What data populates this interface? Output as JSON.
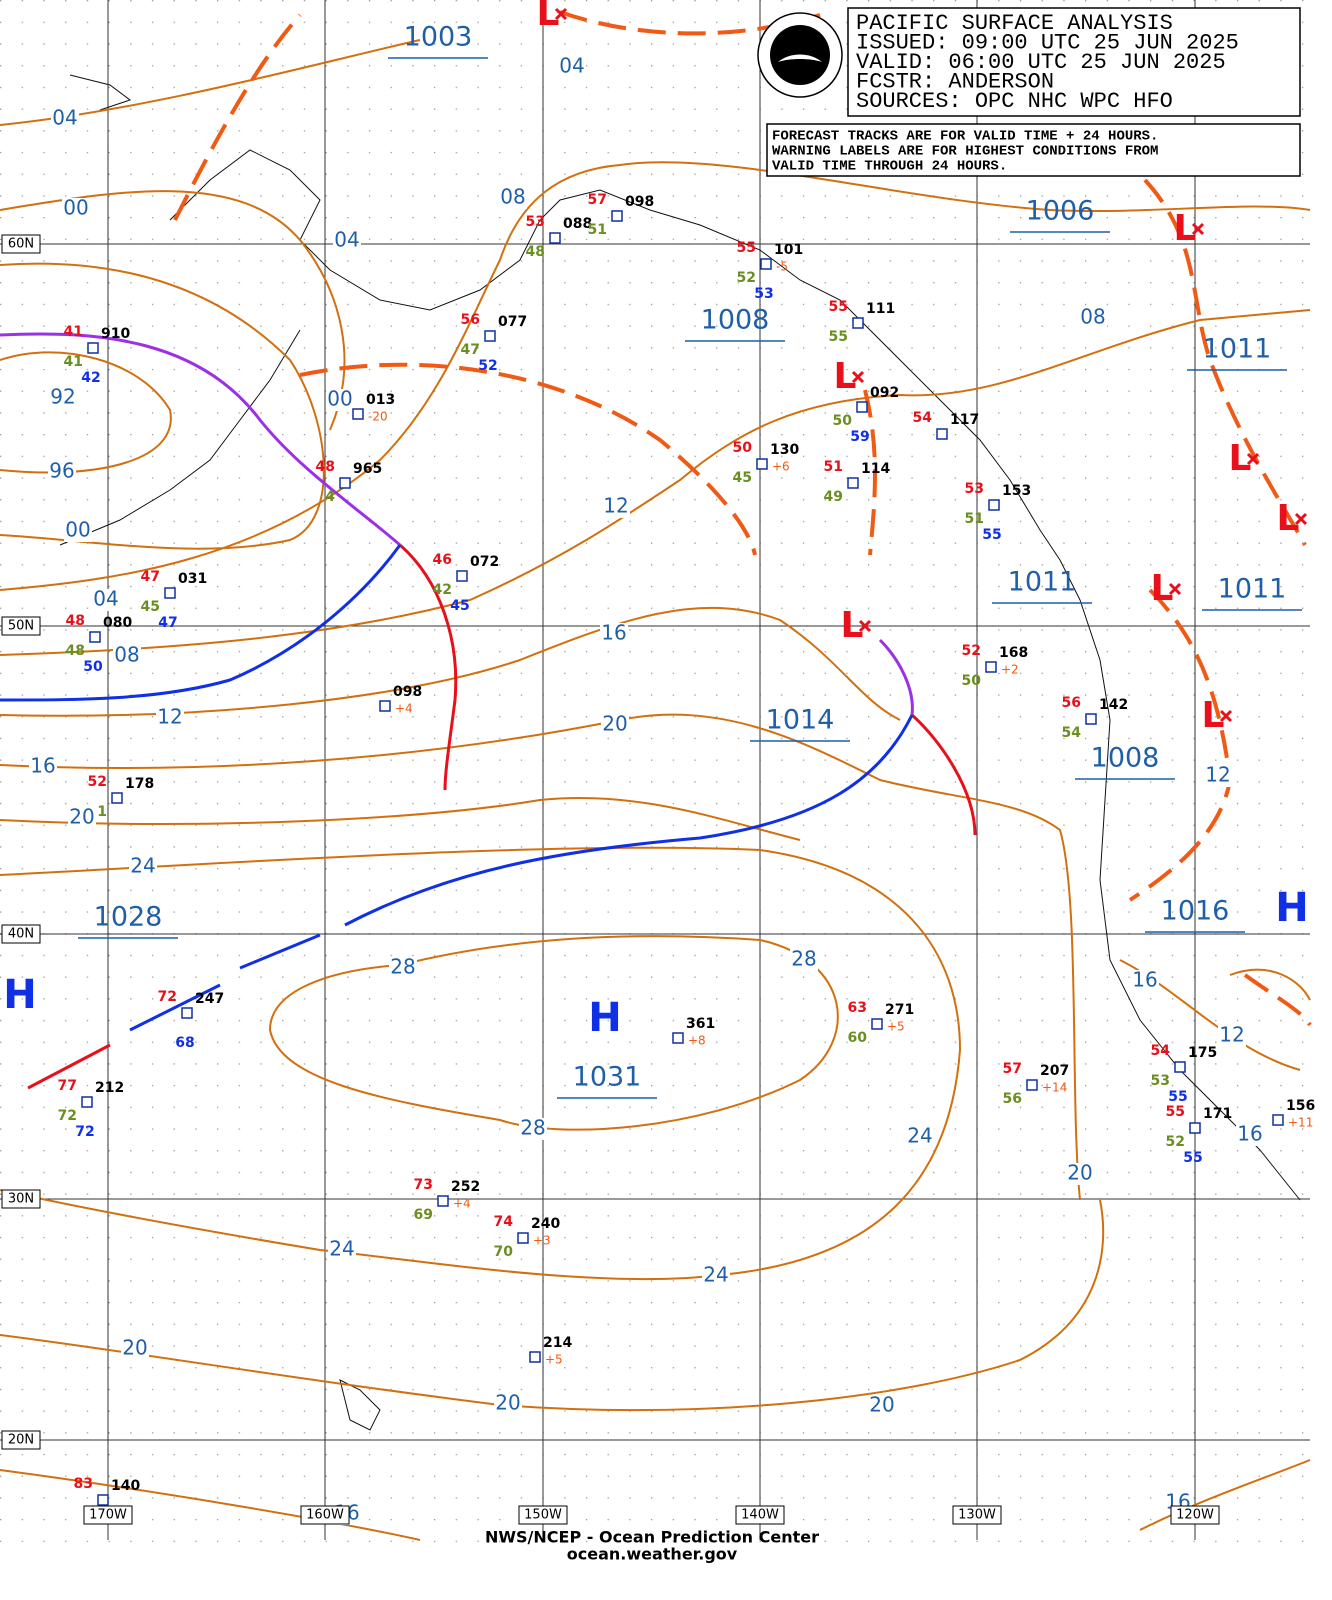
{
  "header": {
    "title": "PACIFIC SURFACE ANALYSIS",
    "issued": "ISSUED: 09:00 UTC 25 JUN 2025",
    "valid": "VALID:  06:00 UTC 25 JUN 2025",
    "forecaster": "FCSTR:  ANDERSON",
    "sources": "SOURCES: OPC NHC WPC HFO"
  },
  "note": [
    "FORECAST TRACKS ARE FOR VALID TIME + 24 HOURS.",
    "WARNING LABELS ARE FOR HIGHEST CONDITIONS FROM",
    "VALID TIME THROUGH 24 HOURS."
  ],
  "high_symbols": [
    "H",
    "H",
    "H"
  ],
  "low_symbols": [
    "L",
    "L",
    "L",
    "L",
    "L",
    "L",
    "L",
    "L"
  ],
  "center_pressures": [
    "1003",
    "1006",
    "1008",
    "1011",
    "1011",
    "1011",
    "1014",
    "1008",
    "1016",
    "1028",
    "1031"
  ],
  "isobar_labels": [
    "04",
    "04",
    "00",
    "04",
    "08",
    "08",
    "92",
    "00",
    "96",
    "00",
    "12",
    "04",
    "08",
    "16",
    "12",
    "20",
    "16",
    "20",
    "24",
    "28",
    "28",
    "12",
    "16",
    "12",
    "28",
    "24",
    "16",
    "20",
    "24",
    "24",
    "20",
    "20",
    "20",
    "16",
    "16"
  ],
  "latitude_labels": [
    "60N",
    "50N",
    "40N",
    "30N",
    "20N"
  ],
  "longitude_labels": [
    "170W",
    "160W",
    "150W",
    "140W",
    "130W",
    "120W"
  ],
  "stations": [
    {
      "pressure": "910",
      "air_temp": "41",
      "dewpoint": "41",
      "sea_temp": "42"
    },
    {
      "pressure": "013",
      "tendency": "-20"
    },
    {
      "pressure": "965",
      "air_temp": "48",
      "dewpoint": "4"
    },
    {
      "pressure": "077",
      "air_temp": "56",
      "dewpoint": "47",
      "sea_temp": "52"
    },
    {
      "pressure": "088",
      "air_temp": "53",
      "dewpoint": "48"
    },
    {
      "pressure": "098",
      "air_temp": "57",
      "dewpoint": "51"
    },
    {
      "pressure": "101",
      "air_temp": "55",
      "dewpoint": "52",
      "sea_temp": "53",
      "tendency": "-5"
    },
    {
      "pressure": "111",
      "air_temp": "55",
      "dewpoint": "55"
    },
    {
      "pressure": "092",
      "dewpoint": "50",
      "sea_temp": "59"
    },
    {
      "pressure": "117",
      "air_temp": "54"
    },
    {
      "pressure": "130",
      "air_temp": "50",
      "dewpoint": "45",
      "tendency": "+6"
    },
    {
      "pressure": "114",
      "air_temp": "51",
      "dewpoint": "49"
    },
    {
      "pressure": "153",
      "air_temp": "53",
      "dewpoint": "51",
      "sea_temp": "55"
    },
    {
      "pressure": "072",
      "air_temp": "46",
      "dewpoint": "42",
      "sea_temp": "45"
    },
    {
      "pressure": "031",
      "air_temp": "47",
      "dewpoint": "45",
      "sea_temp": "47"
    },
    {
      "pressure": "080",
      "air_temp": "48",
      "dewpoint": "48",
      "sea_temp": "50"
    },
    {
      "pressure": "098",
      "tendency": "+4"
    },
    {
      "pressure": "168",
      "air_temp": "52",
      "dewpoint": "50",
      "tendency": "+2"
    },
    {
      "pressure": "142",
      "air_temp": "56",
      "dewpoint": "54"
    },
    {
      "pressure": "178",
      "air_temp": "52",
      "dewpoint": "1"
    },
    {
      "pressure": "247",
      "air_temp": "72",
      "sea_temp": "68"
    },
    {
      "pressure": "361",
      "tendency": "+8"
    },
    {
      "pressure": "271",
      "air_temp": "63",
      "dewpoint": "60",
      "tendency": "+5"
    },
    {
      "pressure": "212",
      "air_temp": "77",
      "dewpoint": "72",
      "sea_temp": "72"
    },
    {
      "pressure": "207",
      "air_temp": "57",
      "dewpoint": "56",
      "tendency": "+14"
    },
    {
      "pressure": "175",
      "air_temp": "54",
      "dewpoint": "53",
      "sea_temp": "55"
    },
    {
      "pressure": "171",
      "air_temp": "55",
      "dewpoint": "52",
      "sea_temp": "55"
    },
    {
      "pressure": "252",
      "air_temp": "73",
      "dewpoint": "69",
      "tendency": "+4"
    },
    {
      "pressure": "240",
      "air_temp": "74",
      "dewpoint": "70",
      "tendency": "+3"
    },
    {
      "pressure": "214",
      "tendency": "+5"
    },
    {
      "pressure": "140",
      "air_temp": "83"
    },
    {
      "pressure": "156",
      "tendency": "+11"
    }
  ],
  "footer": {
    "credit": "NWS/NCEP - Ocean Prediction Center",
    "url": "ocean.weather.gov"
  }
}
